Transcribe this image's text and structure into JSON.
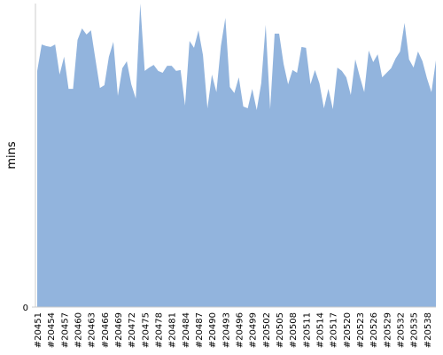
{
  "chart_data": {
    "type": "area",
    "y_label": "mins",
    "color": "#92b4dd",
    "categories": [
      "#20451",
      null,
      null,
      "#20454",
      null,
      null,
      "#20457",
      null,
      null,
      "#20460",
      null,
      null,
      "#20463",
      null,
      null,
      "#20466",
      null,
      null,
      "#20469",
      null,
      null,
      "#20472",
      null,
      null,
      "#20475",
      null,
      null,
      "#20478",
      null,
      null,
      "#20481",
      null,
      null,
      "#20484",
      null,
      null,
      "#20487",
      null,
      null,
      "#20490",
      null,
      null,
      "#20493",
      null,
      null,
      "#20496",
      null,
      null,
      "#20499",
      null,
      null,
      "#20502",
      null,
      null,
      "#20505",
      null,
      null,
      "#20508",
      null,
      null,
      "#20511",
      null,
      null,
      "#20514",
      null,
      null,
      "#20517",
      null,
      null,
      "#20520",
      null,
      null,
      "#20523",
      null,
      null,
      "#20526",
      null,
      null,
      "#20529",
      null,
      null,
      "#20532",
      null,
      null,
      "#20535",
      null,
      null,
      "#20538",
      null,
      null
    ],
    "values": [
      77.8,
      86.5,
      86,
      85.7,
      86.5,
      76.6,
      82.5,
      71.9,
      71.9,
      88,
      91.8,
      89.8,
      91.2,
      81.6,
      72.2,
      73.1,
      82.5,
      87.4,
      69.6,
      78.7,
      81,
      73.4,
      68.7,
      100,
      77.8,
      78.9,
      79.8,
      77.8,
      77.2,
      79.5,
      79.5,
      77.8,
      78.1,
      66.4,
      87.7,
      85.4,
      91.2,
      83,
      65.5,
      76.6,
      70.8,
      86,
      95.3,
      72.5,
      70.5,
      75.7,
      66.1,
      65.5,
      71.9,
      64.9,
      73.7,
      93,
      65.2,
      90.1,
      90.1,
      80.1,
      73.4,
      78.1,
      77.2,
      85.7,
      85.4,
      73.4,
      78.1,
      73.7,
      65.5,
      71.9,
      65.2,
      78.9,
      77.8,
      75.7,
      69.9,
      81.6,
      76,
      70.8,
      84.5,
      80.7,
      83.3,
      75.7,
      77.2,
      78.7,
      81.9,
      84.2,
      93.6,
      81.6,
      78.9,
      84.2,
      81,
      75.4,
      70.8,
      81.3
    ],
    "ylim": [
      0,
      100
    ],
    "yticks": [
      0
    ]
  }
}
